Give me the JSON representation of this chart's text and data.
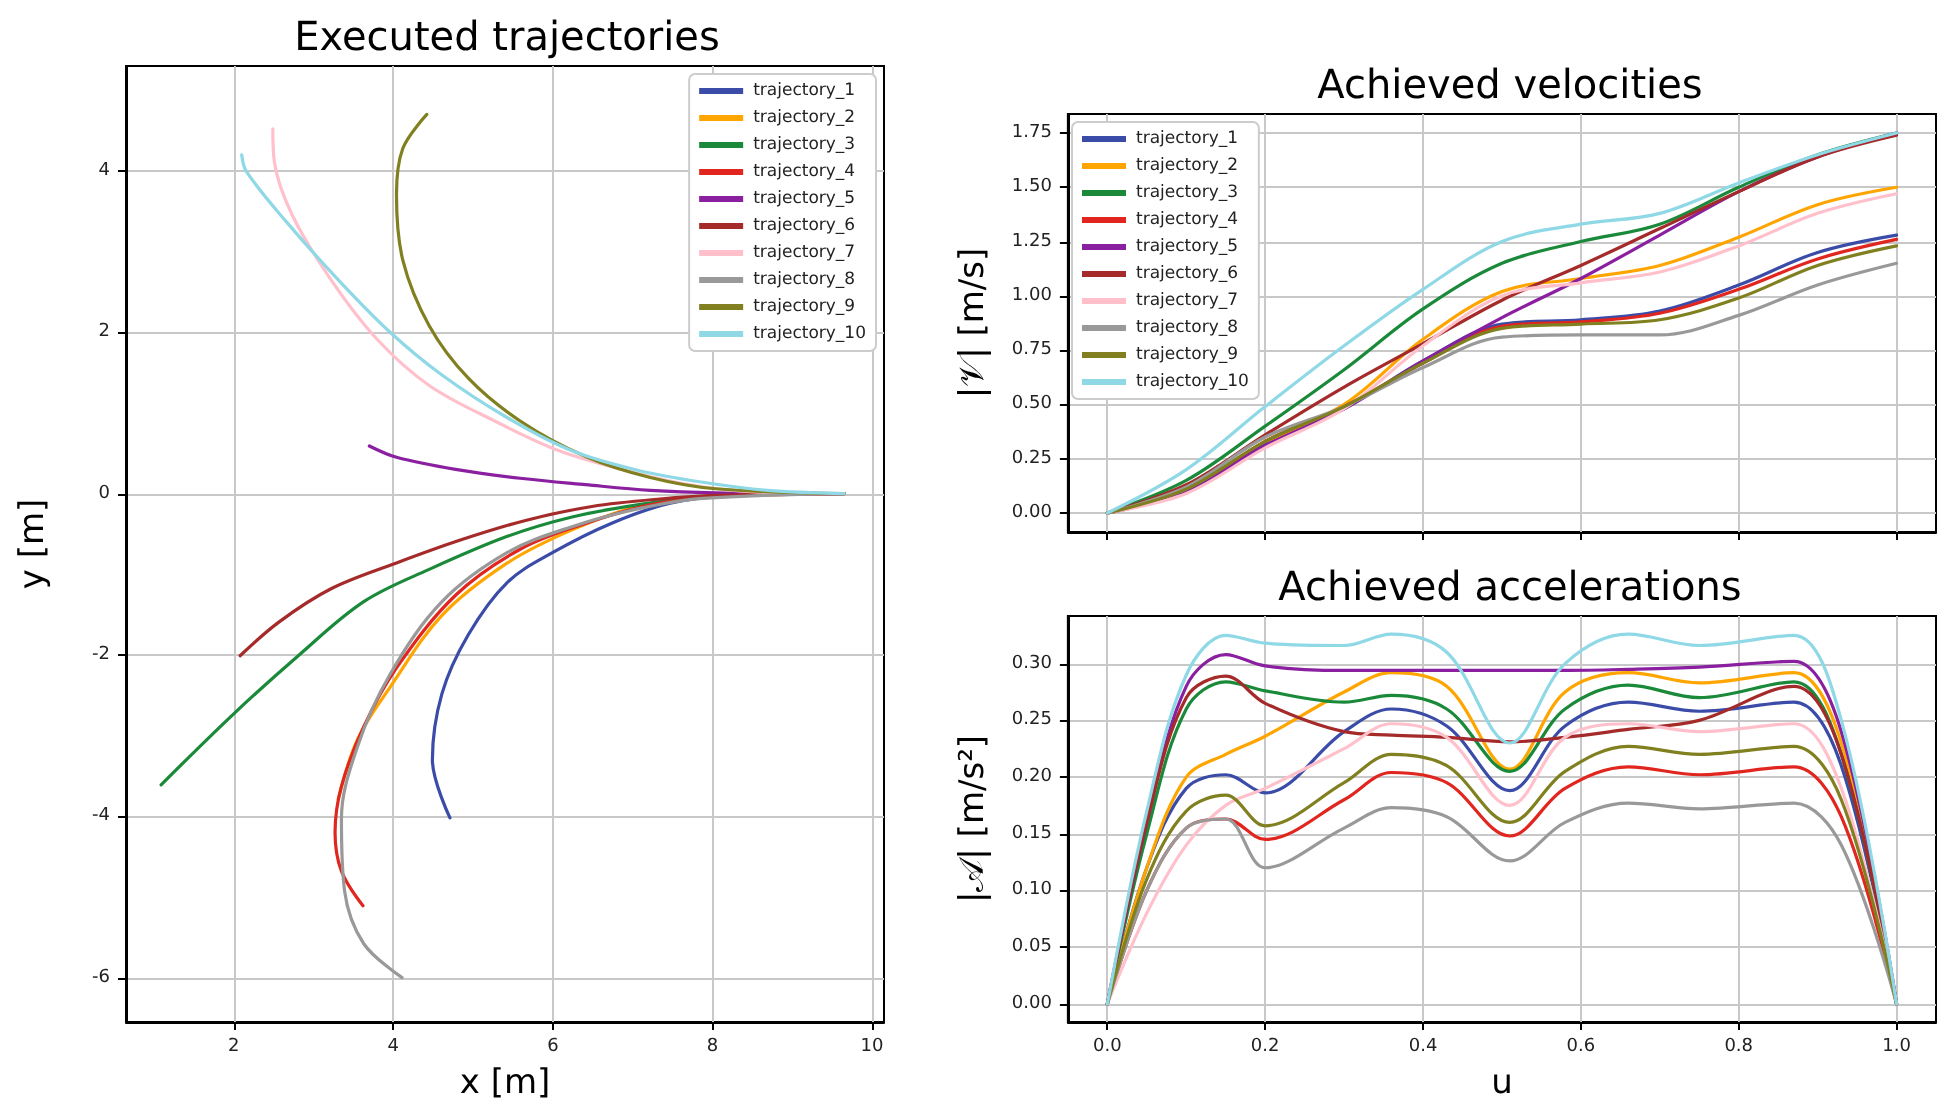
{
  "chart_data": [
    {
      "type": "line",
      "title": "Executed trajectories",
      "xlabel": "x [m]",
      "ylabel": "y [m]",
      "xlim": [
        0.65,
        10.15
      ],
      "ylim": [
        -6.55,
        5.3
      ],
      "xticks": [
        2,
        4,
        6,
        8,
        10
      ],
      "yticks": [
        -6,
        -4,
        -2,
        0,
        2,
        4
      ],
      "grid": true,
      "legend": "top right",
      "series": [
        {
          "name": "trajectory_1",
          "color": "#3b4ba8",
          "x": [
            4.71,
            4.49,
            4.61,
            4.94,
            5.43,
            6.0,
            6.73,
            7.47,
            8.29,
            9.65
          ],
          "values": [
            -4.02,
            -3.3,
            -2.48,
            -1.75,
            -1.1,
            -0.73,
            -0.37,
            -0.12,
            -0.02,
            0
          ]
        },
        {
          "name": "trajectory_2",
          "color": "#ffa500",
          "x": [
            3.31,
            3.55,
            3.96,
            4.61,
            5.43,
            6.24,
            7.06,
            7.88,
            9.65
          ],
          "values": [
            -3.79,
            -3.05,
            -2.4,
            -1.51,
            -0.86,
            -0.45,
            -0.16,
            -0.04,
            0
          ]
        },
        {
          "name": "trajectory_3",
          "color": "#1a8a3a",
          "x": [
            1.09,
            2.0,
            2.82,
            3.63,
            4.45,
            5.43,
            6.24,
            7.06,
            7.88,
            9.65
          ],
          "values": [
            -3.61,
            -2.73,
            -2.0,
            -1.34,
            -0.94,
            -0.53,
            -0.29,
            -0.14,
            -0.04,
            0
          ]
        },
        {
          "name": "trajectory_4",
          "color": "#e0261f",
          "x": [
            3.62,
            3.35,
            3.27,
            3.35,
            3.63,
            4.04,
            4.78,
            5.59,
            6.41,
            7.22,
            8.04,
            9.65
          ],
          "values": [
            -5.11,
            -4.68,
            -4.2,
            -3.63,
            -2.89,
            -2.16,
            -1.26,
            -0.69,
            -0.37,
            -0.14,
            -0.04,
            0
          ]
        },
        {
          "name": "trajectory_5",
          "color": "#8a1fa0",
          "x": [
            3.7,
            4.04,
            4.78,
            5.59,
            6.41,
            7.22,
            8.04,
            9.65
          ],
          "values": [
            0.59,
            0.45,
            0.3,
            0.19,
            0.11,
            0.04,
            0.01,
            0
          ]
        },
        {
          "name": "trajectory_6",
          "color": "#a52a2a",
          "x": [
            2.08,
            2.57,
            3.22,
            4.04,
            4.86,
            5.67,
            6.49,
            7.31,
            8.12,
            9.65
          ],
          "values": [
            -2.01,
            -1.59,
            -1.18,
            -0.86,
            -0.57,
            -0.33,
            -0.16,
            -0.07,
            -0.02,
            0
          ]
        },
        {
          "name": "trajectory_7",
          "color": "#ffc0cb",
          "x": [
            2.49,
            2.51,
            2.73,
            3.22,
            3.8,
            4.45,
            5.27,
            6.08,
            6.9,
            7.71,
            8.53,
            9.65
          ],
          "values": [
            4.52,
            4.11,
            3.46,
            2.65,
            1.91,
            1.34,
            0.9,
            0.53,
            0.29,
            0.11,
            0.02,
            0
          ]
        },
        {
          "name": "trajectory_8",
          "color": "#999999",
          "x": [
            4.11,
            3.63,
            3.39,
            3.35,
            3.55,
            3.96,
            4.61,
            5.43,
            6.24,
            7.06,
            7.88,
            9.65
          ],
          "values": [
            -6.0,
            -5.58,
            -4.93,
            -4.03,
            -3.14,
            -2.24,
            -1.34,
            -0.73,
            -0.41,
            -0.19,
            -0.06,
            0
          ]
        },
        {
          "name": "trajectory_9",
          "color": "#808020",
          "x": [
            4.42,
            4.12,
            4.04,
            4.12,
            4.45,
            4.94,
            5.59,
            6.41,
            7.22,
            8.04,
            9.65
          ],
          "values": [
            4.7,
            4.28,
            3.71,
            2.89,
            2.08,
            1.43,
            0.9,
            0.46,
            0.2,
            0.06,
            0
          ]
        },
        {
          "name": "trajectory_10",
          "color": "#8fd8e6",
          "x": [
            2.1,
            2.16,
            2.65,
            3.31,
            3.96,
            4.61,
            5.43,
            6.24,
            7.06,
            7.88,
            8.69,
            9.65
          ],
          "values": [
            4.2,
            3.99,
            3.38,
            2.65,
            2.0,
            1.47,
            0.94,
            0.53,
            0.29,
            0.14,
            0.04,
            0
          ]
        }
      ]
    },
    {
      "type": "line",
      "title": "Achieved velocities",
      "ylabel": "|𝒱| [m/s]",
      "xlim": [
        -0.05,
        1.05
      ],
      "ylim": [
        -0.0875,
        1.8375
      ],
      "xticks": [
        0,
        0.2,
        0.4,
        0.6,
        0.8,
        1
      ],
      "yticks": [
        {
          "value": 0,
          "label": "0.00"
        },
        {
          "value": 0.25,
          "label": "0.25"
        },
        {
          "value": 0.5,
          "label": "0.50"
        },
        {
          "value": 0.75,
          "label": "0.75"
        },
        {
          "value": 1,
          "label": "1.00"
        },
        {
          "value": 1.25,
          "label": "1.25"
        },
        {
          "value": 1.5,
          "label": "1.50"
        },
        {
          "value": 1.75,
          "label": "1.75"
        }
      ],
      "tick_labels": "y",
      "grid": true,
      "legend": "top left",
      "x": [
        0,
        0.1,
        0.2,
        0.3,
        0.4,
        0.5,
        0.6,
        0.7,
        0.8,
        0.9,
        1.0
      ],
      "series": [
        {
          "name": "trajectory_1",
          "color": "#3b4ba8",
          "values": [
            0,
            0.1,
            0.32,
            0.48,
            0.7,
            0.87,
            0.89,
            0.93,
            1.05,
            1.2,
            1.28
          ]
        },
        {
          "name": "trajectory_2",
          "color": "#ffa500",
          "values": [
            null,
            null,
            0.33,
            0.5,
            0.8,
            1.02,
            1.08,
            1.14,
            1.27,
            1.42,
            1.5
          ]
        },
        {
          "name": "trajectory_3",
          "color": "#1a8a3a",
          "values": [
            0,
            0.15,
            0.4,
            0.66,
            0.94,
            1.15,
            1.25,
            1.33,
            1.5,
            1.65,
            1.75
          ]
        },
        {
          "name": "trajectory_4",
          "color": "#e0261f",
          "values": [
            0,
            0.1,
            0.33,
            0.49,
            0.69,
            0.86,
            0.88,
            0.92,
            1.03,
            1.17,
            1.26
          ]
        },
        {
          "name": "trajectory_5",
          "color": "#8a1fa0",
          "values": [
            0,
            0.1,
            0.31,
            0.48,
            0.7,
            0.9,
            1.08,
            1.28,
            1.48,
            1.64,
            1.75
          ]
        },
        {
          "name": "trajectory_6",
          "color": "#a52a2a",
          "values": [
            0,
            0.13,
            0.36,
            0.58,
            0.78,
            0.98,
            1.14,
            1.31,
            1.48,
            1.64,
            1.74
          ]
        },
        {
          "name": "trajectory_7",
          "color": "#ffc0cb",
          "values": [
            0,
            0.09,
            0.3,
            0.48,
            0.77,
            1.0,
            1.06,
            1.11,
            1.23,
            1.38,
            1.47
          ]
        },
        {
          "name": "trajectory_8",
          "color": "#999999",
          "values": [
            0,
            0.12,
            0.35,
            0.49,
            0.67,
            0.81,
            0.82,
            0.82,
            0.91,
            1.05,
            1.15
          ]
        },
        {
          "name": "trajectory_9",
          "color": "#808020",
          "values": [
            0,
            0.11,
            0.33,
            0.49,
            0.69,
            0.85,
            0.87,
            0.89,
            0.99,
            1.14,
            1.23
          ]
        },
        {
          "name": "trajectory_10",
          "color": "#8fd8e6",
          "values": [
            0,
            0.2,
            0.49,
            0.77,
            1.03,
            1.25,
            1.33,
            1.38,
            1.52,
            1.65,
            1.75
          ]
        }
      ]
    },
    {
      "type": "line",
      "title": "Achieved accelerations",
      "xlabel": "u",
      "ylabel": "|𝒜| [m/s²]",
      "xlim": [
        -0.05,
        1.05
      ],
      "ylim": [
        -0.016,
        0.342
      ],
      "xticks": [
        {
          "value": 0,
          "label": "0.0"
        },
        {
          "value": 0.2,
          "label": "0.2"
        },
        {
          "value": 0.4,
          "label": "0.4"
        },
        {
          "value": 0.6,
          "label": "0.6"
        },
        {
          "value": 0.8,
          "label": "0.8"
        },
        {
          "value": 1,
          "label": "1.0"
        }
      ],
      "yticks": [
        {
          "value": 0,
          "label": "0.00"
        },
        {
          "value": 0.05,
          "label": "0.05"
        },
        {
          "value": 0.1,
          "label": "0.10"
        },
        {
          "value": 0.15,
          "label": "0.15"
        },
        {
          "value": 0.2,
          "label": "0.20"
        },
        {
          "value": 0.25,
          "label": "0.25"
        },
        {
          "value": 0.3,
          "label": "0.30"
        }
      ],
      "grid": true,
      "x": [
        0,
        0.05,
        0.1,
        0.15,
        0.2,
        0.3,
        0.36,
        0.43,
        0.51,
        0.58,
        0.66,
        0.75,
        0.87,
        0.93,
        1.0
      ],
      "series": [
        {
          "color": "#3b4ba8",
          "values": [
            0,
            0.12,
            0.19,
            0.202,
            0.186,
            0.24,
            0.26,
            0.245,
            0.188,
            0.245,
            0.266,
            0.258,
            0.266,
            0.21,
            0
          ]
        },
        {
          "color": "#ffa500",
          "values": [
            0,
            0.12,
            0.2,
            0.22,
            0.236,
            0.275,
            0.292,
            0.28,
            0.207,
            0.275,
            0.292,
            0.283,
            0.292,
            0.23,
            0
          ]
        },
        {
          "color": "#1a8a3a",
          "values": [
            0,
            0.15,
            0.26,
            0.284,
            0.276,
            0.266,
            0.272,
            0.26,
            0.205,
            0.26,
            0.281,
            0.27,
            0.284,
            0.22,
            0
          ]
        },
        {
          "color": "#e0261f",
          "values": [
            0,
            0.1,
            0.155,
            0.163,
            0.145,
            0.18,
            0.204,
            0.195,
            0.148,
            0.19,
            0.209,
            0.202,
            0.209,
            0.165,
            0
          ]
        },
        {
          "color": "#8a1fa0",
          "values": [
            0,
            0.16,
            0.28,
            0.308,
            0.298,
            0.294,
            0.294,
            0.294,
            0.294,
            0.294,
            0.295,
            0.297,
            0.302,
            0.24,
            0
          ]
        },
        {
          "color": "#a52a2a",
          "values": [
            0,
            0.16,
            0.27,
            0.289,
            0.265,
            0.24,
            0.237,
            0.235,
            0.231,
            0.235,
            0.242,
            0.25,
            0.28,
            0.22,
            0
          ]
        },
        {
          "color": "#ffc0cb",
          "values": [
            0,
            0.08,
            0.14,
            0.175,
            0.19,
            0.225,
            0.247,
            0.235,
            0.175,
            0.235,
            0.247,
            0.24,
            0.247,
            0.19,
            0
          ]
        },
        {
          "color": "#999999",
          "values": [
            0,
            0.1,
            0.155,
            0.163,
            0.12,
            0.155,
            0.173,
            0.165,
            0.126,
            0.16,
            0.177,
            0.172,
            0.177,
            0.14,
            0
          ]
        },
        {
          "color": "#808020",
          "values": [
            0,
            0.11,
            0.17,
            0.184,
            0.157,
            0.195,
            0.22,
            0.21,
            0.16,
            0.205,
            0.227,
            0.22,
            0.227,
            0.18,
            0
          ]
        },
        {
          "color": "#8fd8e6",
          "values": [
            0,
            0.17,
            0.29,
            0.325,
            0.318,
            0.316,
            0.326,
            0.31,
            0.23,
            0.3,
            0.326,
            0.316,
            0.325,
            0.25,
            0
          ]
        }
      ]
    }
  ]
}
